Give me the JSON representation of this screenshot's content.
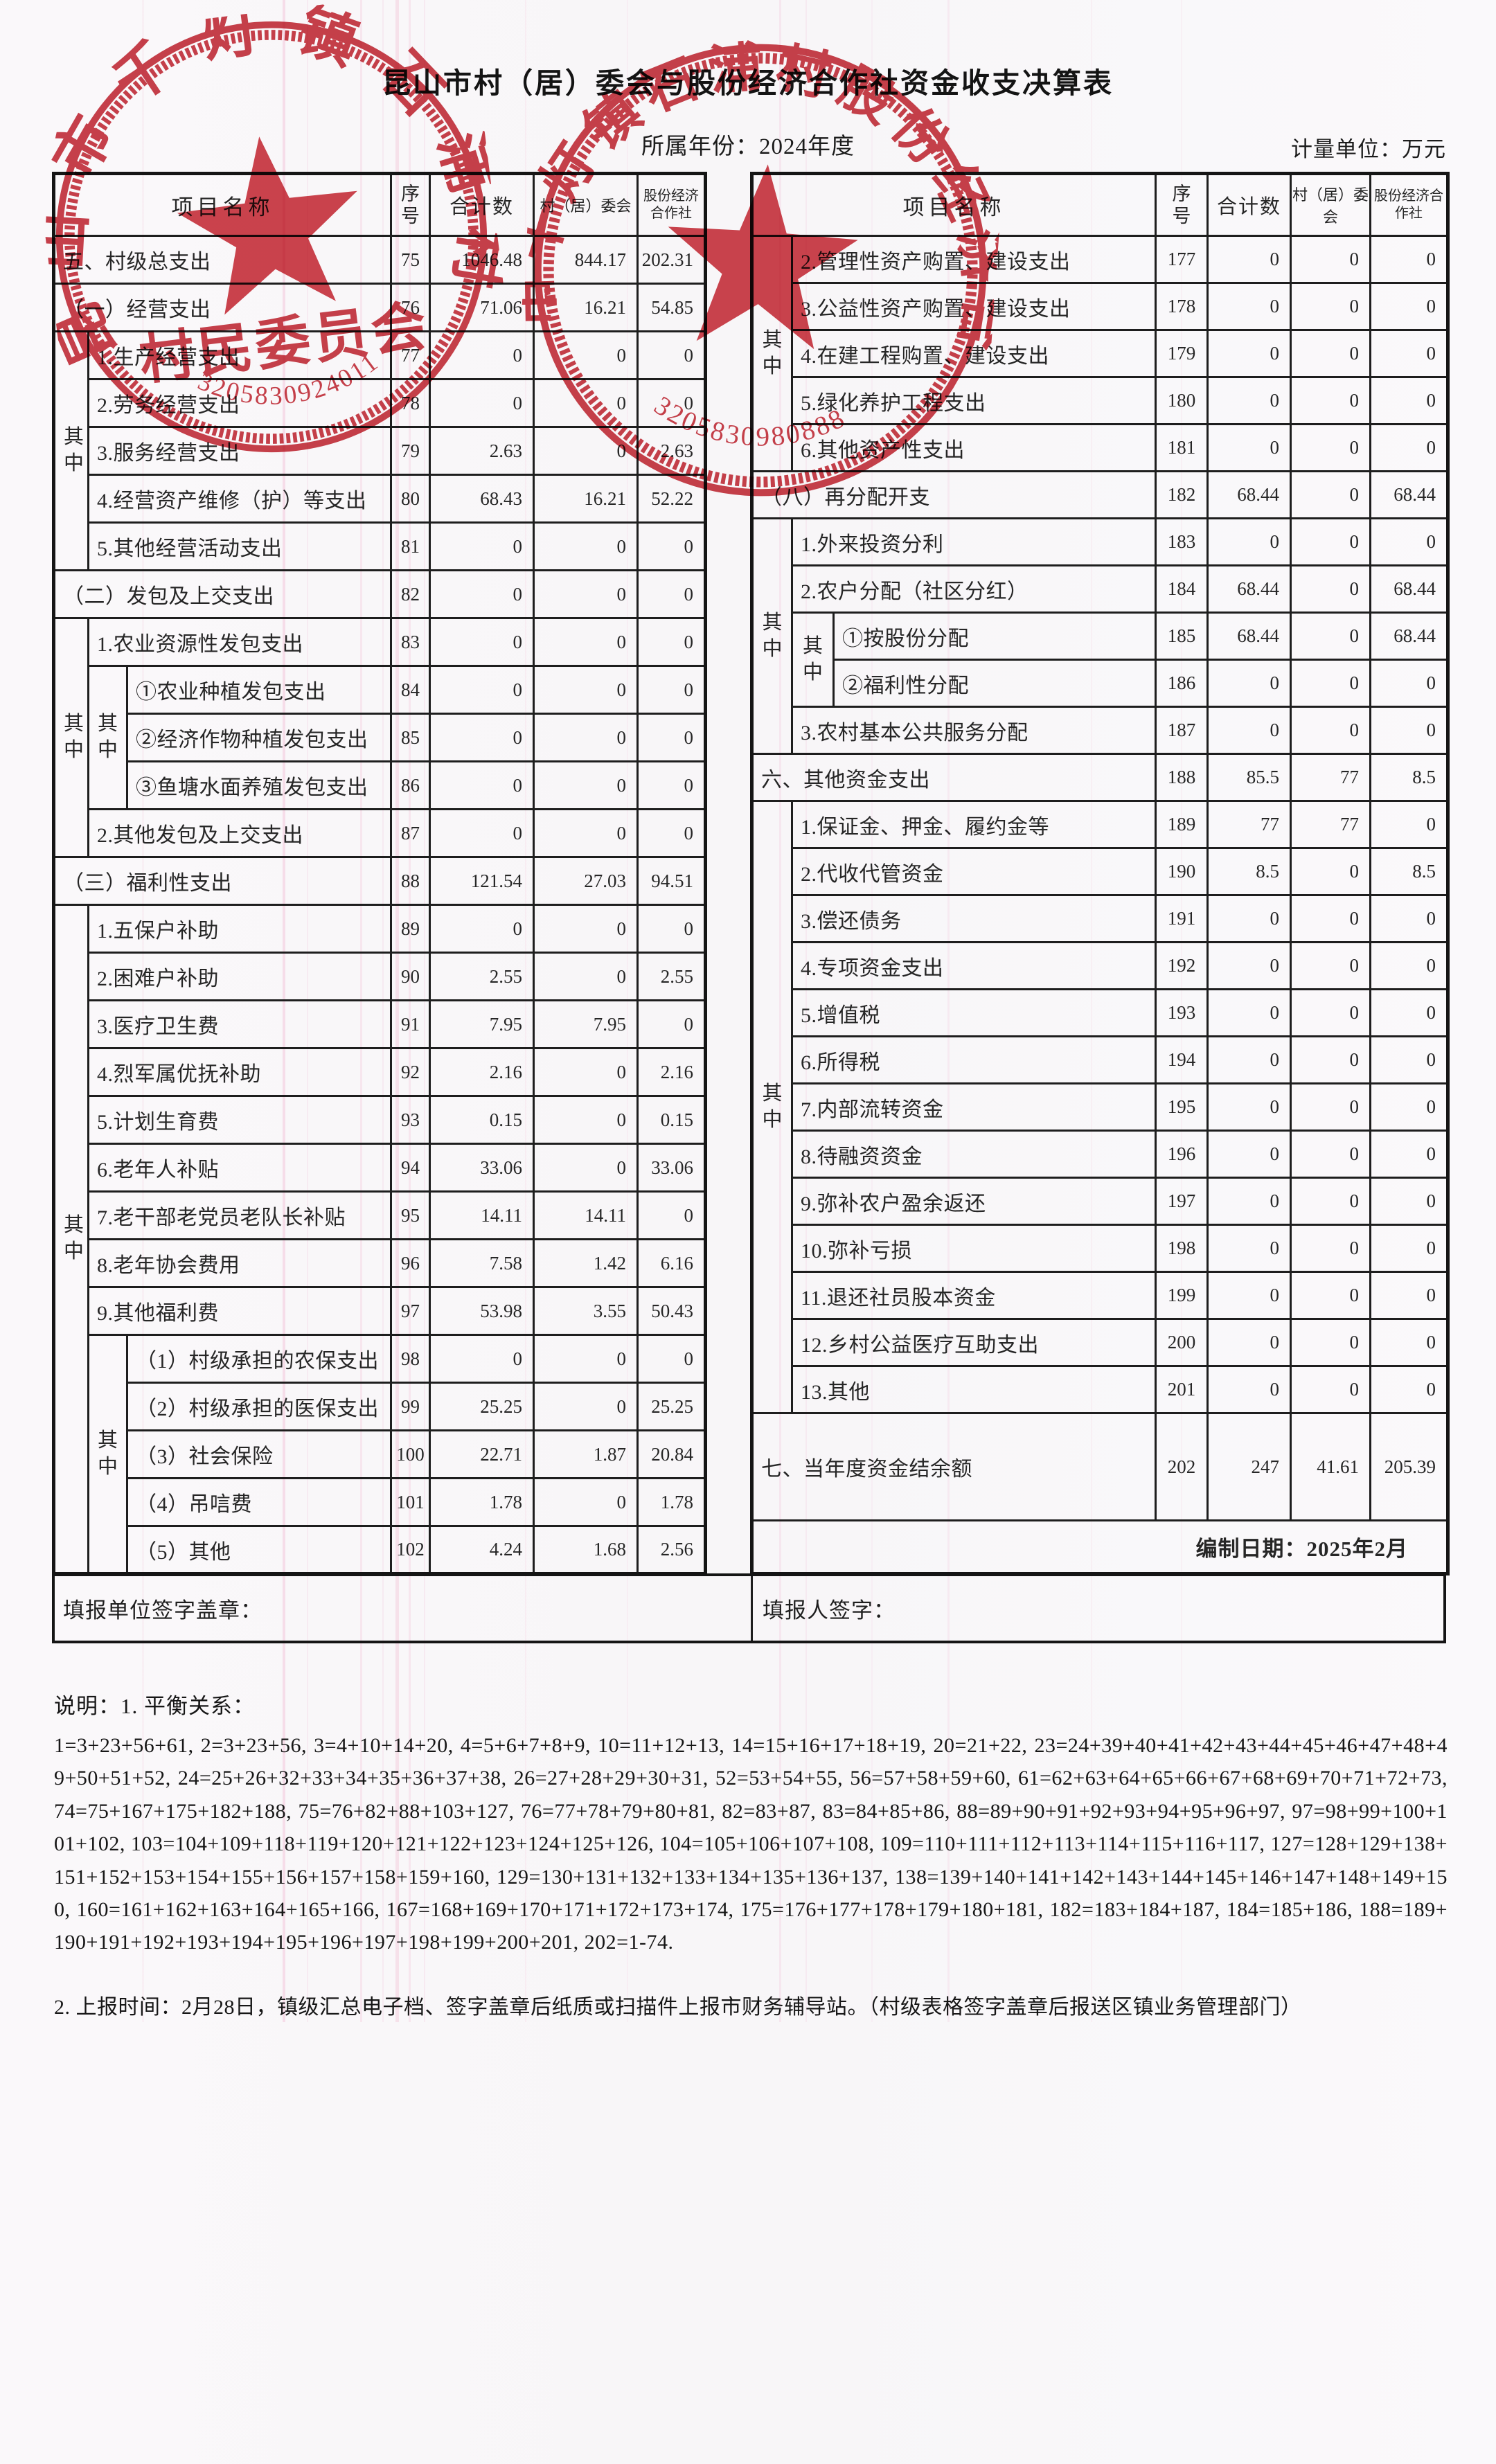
{
  "header": {
    "title": "昆山市村（居）委会与股份经济合作社资金收支决算表",
    "year": "所属年份：2024年度",
    "unit": "计量单位：万元"
  },
  "columns": {
    "name": "项目名称",
    "seq": "序号",
    "total": "合计数",
    "committee": "村（居）委会",
    "coop": "股份经济合作社",
    "group": "其中"
  },
  "left_rows": [
    {
      "label": "五、村级总支出",
      "seq": "75",
      "total": "1046.48",
      "committee": "844.17",
      "coop": "202.31",
      "indent": 0
    },
    {
      "label": "（一）经营支出",
      "seq": "76",
      "total": "71.06",
      "committee": "16.21",
      "coop": "54.85",
      "indent": 0
    },
    {
      "label": "1.生产经营支出",
      "seq": "77",
      "total": "0",
      "committee": "0",
      "coop": "0",
      "indent": 1,
      "groups": [
        5
      ]
    },
    {
      "label": "2.劳务经营支出",
      "seq": "78",
      "total": "0",
      "committee": "0",
      "coop": "0",
      "indent": 1
    },
    {
      "label": "3.服务经营支出",
      "seq": "79",
      "total": "2.63",
      "committee": "0",
      "coop": "2.63",
      "indent": 1
    },
    {
      "label": "4.经营资产维修（护）等支出",
      "seq": "80",
      "total": "68.43",
      "committee": "16.21",
      "coop": "52.22",
      "indent": 1
    },
    {
      "label": "5.其他经营活动支出",
      "seq": "81",
      "total": "0",
      "committee": "0",
      "coop": "0",
      "indent": 1
    },
    {
      "label": "（二）发包及上交支出",
      "seq": "82",
      "total": "0",
      "committee": "0",
      "coop": "0",
      "indent": 0
    },
    {
      "label": "1.农业资源性发包支出",
      "seq": "83",
      "total": "0",
      "committee": "0",
      "coop": "0",
      "indent": 1,
      "groups": [
        5
      ]
    },
    {
      "label": "①农业种植发包支出",
      "seq": "84",
      "total": "0",
      "committee": "0",
      "coop": "0",
      "indent": 2,
      "groups": [
        3
      ]
    },
    {
      "label": "②经济作物种植发包支出",
      "seq": "85",
      "total": "0",
      "committee": "0",
      "coop": "0",
      "indent": 2
    },
    {
      "label": "③鱼塘水面养殖发包支出",
      "seq": "86",
      "total": "0",
      "committee": "0",
      "coop": "0",
      "indent": 2
    },
    {
      "label": "2.其他发包及上交支出",
      "seq": "87",
      "total": "0",
      "committee": "0",
      "coop": "0",
      "indent": 1
    },
    {
      "label": "（三）福利性支出",
      "seq": "88",
      "total": "121.54",
      "committee": "27.03",
      "coop": "94.51",
      "indent": 0
    },
    {
      "label": "1.五保户补助",
      "seq": "89",
      "total": "0",
      "committee": "0",
      "coop": "0",
      "indent": 1,
      "groups": [
        14
      ]
    },
    {
      "label": "2.困难户补助",
      "seq": "90",
      "total": "2.55",
      "committee": "0",
      "coop": "2.55",
      "indent": 1
    },
    {
      "label": "3.医疗卫生费",
      "seq": "91",
      "total": "7.95",
      "committee": "7.95",
      "coop": "0",
      "indent": 1
    },
    {
      "label": "4.烈军属优抚补助",
      "seq": "92",
      "total": "2.16",
      "committee": "0",
      "coop": "2.16",
      "indent": 1
    },
    {
      "label": "5.计划生育费",
      "seq": "93",
      "total": "0.15",
      "committee": "0",
      "coop": "0.15",
      "indent": 1
    },
    {
      "label": "6.老年人补贴",
      "seq": "94",
      "total": "33.06",
      "committee": "0",
      "coop": "33.06",
      "indent": 1
    },
    {
      "label": "7.老干部老党员老队长补贴",
      "seq": "95",
      "total": "14.11",
      "committee": "14.11",
      "coop": "0",
      "indent": 1
    },
    {
      "label": "8.老年协会费用",
      "seq": "96",
      "total": "7.58",
      "committee": "1.42",
      "coop": "6.16",
      "indent": 1
    },
    {
      "label": "9.其他福利费",
      "seq": "97",
      "total": "53.98",
      "committee": "3.55",
      "coop": "50.43",
      "indent": 1
    },
    {
      "label": "（1）村级承担的农保支出",
      "seq": "98",
      "total": "0",
      "committee": "0",
      "coop": "0",
      "indent": 2,
      "groups": [
        5
      ]
    },
    {
      "label": "（2）村级承担的医保支出",
      "seq": "99",
      "total": "25.25",
      "committee": "0",
      "coop": "25.25",
      "indent": 2
    },
    {
      "label": "（3）社会保险",
      "seq": "100",
      "total": "22.71",
      "committee": "1.87",
      "coop": "20.84",
      "indent": 2
    },
    {
      "label": "（4）吊唁费",
      "seq": "101",
      "total": "1.78",
      "committee": "0",
      "coop": "1.78",
      "indent": 2
    },
    {
      "label": "（5）其他",
      "seq": "102",
      "total": "4.24",
      "committee": "1.68",
      "coop": "2.56",
      "indent": 2
    }
  ],
  "right_rows": [
    {
      "label": "2.管理性资产购置、建设支出",
      "seq": "177",
      "total": "0",
      "committee": "0",
      "coop": "0",
      "indent": 1,
      "groups": [
        5
      ]
    },
    {
      "label": "3.公益性资产购置、建设支出",
      "seq": "178",
      "total": "0",
      "committee": "0",
      "coop": "0",
      "indent": 1
    },
    {
      "label": "4.在建工程购置、建设支出",
      "seq": "179",
      "total": "0",
      "committee": "0",
      "coop": "0",
      "indent": 1
    },
    {
      "label": "5.绿化养护工程支出",
      "seq": "180",
      "total": "0",
      "committee": "0",
      "coop": "0",
      "indent": 1
    },
    {
      "label": "6.其他资产性支出",
      "seq": "181",
      "total": "0",
      "committee": "0",
      "coop": "0",
      "indent": 1
    },
    {
      "label": "（八）再分配开支",
      "seq": "182",
      "total": "68.44",
      "committee": "0",
      "coop": "68.44",
      "indent": 0
    },
    {
      "label": "1.外来投资分利",
      "seq": "183",
      "total": "0",
      "committee": "0",
      "coop": "0",
      "indent": 1,
      "groups": [
        5
      ]
    },
    {
      "label": "2.农户分配（社区分红）",
      "seq": "184",
      "total": "68.44",
      "committee": "0",
      "coop": "68.44",
      "indent": 1
    },
    {
      "label": "①按股份分配",
      "seq": "185",
      "total": "68.44",
      "committee": "0",
      "coop": "68.44",
      "indent": 2,
      "groups": [
        2
      ]
    },
    {
      "label": "②福利性分配",
      "seq": "186",
      "total": "0",
      "committee": "0",
      "coop": "0",
      "indent": 2
    },
    {
      "label": "3.农村基本公共服务分配",
      "seq": "187",
      "total": "0",
      "committee": "0",
      "coop": "0",
      "indent": 1
    },
    {
      "label": "六、其他资金支出",
      "seq": "188",
      "total": "85.5",
      "committee": "77",
      "coop": "8.5",
      "indent": 0
    },
    {
      "label": "1.保证金、押金、履约金等",
      "seq": "189",
      "total": "77",
      "committee": "77",
      "coop": "0",
      "indent": 1,
      "groups": [
        13
      ]
    },
    {
      "label": "2.代收代管资金",
      "seq": "190",
      "total": "8.5",
      "committee": "0",
      "coop": "8.5",
      "indent": 1
    },
    {
      "label": "3.偿还债务",
      "seq": "191",
      "total": "0",
      "committee": "0",
      "coop": "0",
      "indent": 1
    },
    {
      "label": "4.专项资金支出",
      "seq": "192",
      "total": "0",
      "committee": "0",
      "coop": "0",
      "indent": 1
    },
    {
      "label": "5.增值税",
      "seq": "193",
      "total": "0",
      "committee": "0",
      "coop": "0",
      "indent": 1
    },
    {
      "label": "6.所得税",
      "seq": "194",
      "total": "0",
      "committee": "0",
      "coop": "0",
      "indent": 1
    },
    {
      "label": "7.内部流转资金",
      "seq": "195",
      "total": "0",
      "committee": "0",
      "coop": "0",
      "indent": 1
    },
    {
      "label": "8.待融资资金",
      "seq": "196",
      "total": "0",
      "committee": "0",
      "coop": "0",
      "indent": 1
    },
    {
      "label": "9.弥补农户盈余返还",
      "seq": "197",
      "total": "0",
      "committee": "0",
      "coop": "0",
      "indent": 1
    },
    {
      "label": "10.弥补亏损",
      "seq": "198",
      "total": "0",
      "committee": "0",
      "coop": "0",
      "indent": 1
    },
    {
      "label": "11.退还社员股本资金",
      "seq": "199",
      "total": "0",
      "committee": "0",
      "coop": "0",
      "indent": 1
    },
    {
      "label": "12.乡村公益医疗互助支出",
      "seq": "200",
      "total": "0",
      "committee": "0",
      "coop": "0",
      "indent": 1
    },
    {
      "label": "13.其他",
      "seq": "201",
      "total": "0",
      "committee": "0",
      "coop": "0",
      "indent": 1
    },
    {
      "label": "七、当年度资金结余额",
      "seq": "202",
      "total": "247",
      "committee": "41.61",
      "coop": "205.39",
      "indent": 0
    },
    {
      "label": "编制日期：2025年2月"
    }
  ],
  "footer": {
    "sign_unit": "填报单位签字盖章：",
    "sign_person": "填报人签字："
  },
  "stamps": [
    {
      "ring": "昆山市千灯镇石浦村",
      "center": "村民委员会",
      "code": "3205830924011"
    },
    {
      "ring": "昆山市千灯镇石浦村股份经济合作社",
      "code": "3205830980888"
    }
  ],
  "notes": {
    "n1": "说明：1. 平衡关系：",
    "formula": "1=3+23+56+61, 2=3+23+56, 3=4+10+14+20, 4=5+6+7+8+9, 10=11+12+13, 14=15+16+17+18+19, 20=21+22, 23=24+39+40+41+42+43+44+45+46+47+48+49+50+51+52, 24=25+26+32+33+34+35+36+37+38, 26=27+28+29+30+31, 52=53+54+55, 56=57+58+59+60, 61=62+63+64+65+66+67+68+69+70+71+72+73, 74=75+167+175+182+188, 75=76+82+88+103+127, 76=77+78+79+80+81, 82=83+87, 83=84+85+86, 88=89+90+91+92+93+94+95+96+97, 97=98+99+100+101+102, 103=104+109+118+119+120+121+122+123+124+125+126, 104=105+106+107+108, 109=110+111+112+113+114+115+116+117, 127=128+129+138+151+152+153+154+155+156+157+158+159+160, 129=130+131+132+133+134+135+136+137, 138=139+140+141+142+143+144+145+146+147+148+149+150, 160=161+162+163+164+165+166, 167=168+169+170+171+172+173+174, 175=176+177+178+179+180+181, 182=183+184+187, 184=185+186, 188=189+190+191+192+193+194+195+196+197+198+199+200+201, 202=1-74.",
    "n2": "2. 上报时间：2月28日，镇级汇总电子档、签字盖章后纸质或扫描件上报市财务辅导站。（村级表格签字盖章后报送区镇业务管理部门）"
  }
}
